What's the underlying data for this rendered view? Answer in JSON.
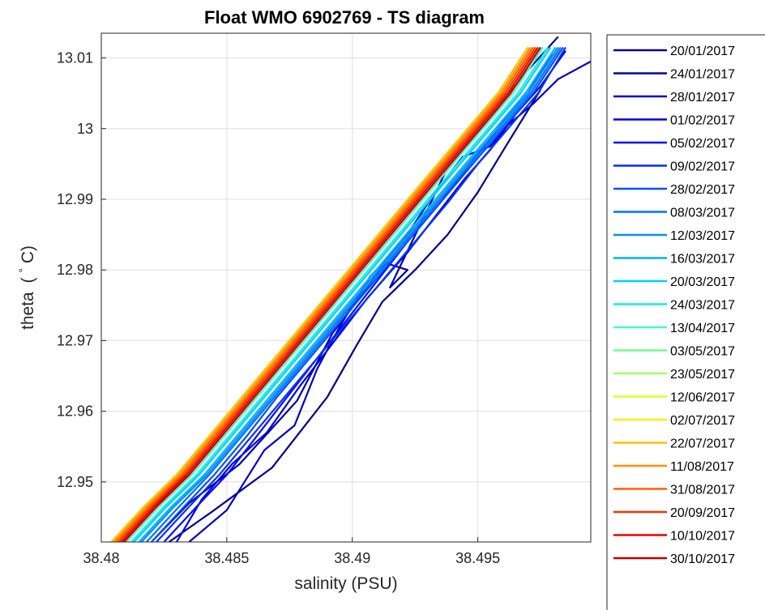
{
  "chart_data": {
    "type": "line",
    "title": "Float WMO 6902769 - TS diagram",
    "xlabel": "salinity (PSU)",
    "ylabel_main": "theta",
    "ylabel_unit": "(",
    "ylabel_deg": "°",
    "ylabel_tail": "C)",
    "xlim": [
      38.48,
      38.4995
    ],
    "ylim": [
      12.9415,
      13.0135
    ],
    "grid": true,
    "legend_position": "right-outside",
    "xticks": [
      {
        "value": 38.48,
        "label": "38.48"
      },
      {
        "value": 38.485,
        "label": "38.485"
      },
      {
        "value": 38.49,
        "label": "38.49"
      },
      {
        "value": 38.495,
        "label": "38.495"
      }
    ],
    "yticks": [
      {
        "value": 12.95,
        "label": "12.95"
      },
      {
        "value": 12.96,
        "label": "12.96"
      },
      {
        "value": 12.97,
        "label": "12.97"
      },
      {
        "value": 12.98,
        "label": "12.98"
      },
      {
        "value": 12.99,
        "label": "12.99"
      },
      {
        "value": 13.0,
        "label": "13"
      },
      {
        "value": 13.01,
        "label": "13.01"
      }
    ],
    "series": [
      {
        "name": "20/01/2017",
        "color": "#00008f",
        "x": [
          38.4827,
          38.4845,
          38.4868,
          38.489,
          38.4902,
          38.4912,
          38.4925,
          38.4938,
          38.495,
          38.4962,
          38.4975
        ],
        "y": [
          12.9415,
          12.946,
          12.952,
          12.962,
          12.9695,
          12.9755,
          12.98,
          12.985,
          12.991,
          12.998,
          13.0055
        ]
      },
      {
        "name": "24/01/2017",
        "color": "#0000a8",
        "x": [
          38.482,
          38.4835,
          38.4855,
          38.4878,
          38.4892,
          38.4905,
          38.4913,
          38.4922,
          38.4915,
          38.4938,
          38.4953,
          38.4968,
          38.4982
        ],
        "y": [
          12.9415,
          12.947,
          12.9525,
          12.9615,
          12.971,
          12.977,
          12.981,
          12.98,
          12.9775,
          12.9945,
          13.0005,
          13.0075,
          13.013
        ]
      },
      {
        "name": "28/01/2017",
        "color": "#0000c4",
        "x": [
          38.4835,
          38.485,
          38.4865,
          38.4877,
          38.4886,
          38.4895,
          38.4907,
          38.492,
          38.4933,
          38.4944,
          38.4955,
          38.4962,
          38.4972,
          38.4982,
          38.4995
        ],
        "y": [
          12.9415,
          12.946,
          12.9545,
          12.958,
          12.966,
          12.972,
          12.979,
          12.984,
          12.991,
          12.996,
          12.9975,
          13.0005,
          13.0035,
          13.007,
          13.0095
        ]
      },
      {
        "name": "01/02/2017",
        "color": "#0000e0",
        "x": [
          38.483,
          38.484,
          38.4852,
          38.4866,
          38.4879,
          38.4893,
          38.4906,
          38.4922,
          38.4934,
          38.4945,
          38.4955,
          38.4965,
          38.4975,
          38.4985
        ],
        "y": [
          12.9415,
          12.9475,
          12.9525,
          12.957,
          12.9635,
          12.97,
          12.976,
          12.9825,
          12.988,
          12.993,
          12.997,
          13.002,
          13.006,
          13.011
        ]
      },
      {
        "name": "05/02/2017",
        "color": "#0010ff",
        "x": [
          38.4825,
          38.4838,
          38.485,
          38.4862,
          38.4874,
          38.4886,
          38.4898,
          38.491,
          38.4922,
          38.4935,
          38.4947,
          38.4958,
          38.497,
          38.498
        ],
        "y": [
          12.9415,
          12.9465,
          12.951,
          12.9565,
          12.962,
          12.9675,
          12.973,
          12.9785,
          12.984,
          12.9895,
          12.995,
          13.0,
          13.0055,
          13.0105
        ]
      },
      {
        "name": "09/02/2017",
        "color": "#0030ff",
        "x": [
          38.4822,
          38.4835,
          38.4847,
          38.486,
          38.4873,
          38.4886,
          38.4899,
          38.4912,
          38.4925,
          38.4938,
          38.495,
          38.4962,
          38.4974,
          38.4985
        ],
        "y": [
          12.9415,
          12.9465,
          12.951,
          12.9565,
          12.962,
          12.9675,
          12.973,
          12.9785,
          12.984,
          12.9895,
          12.995,
          13.0,
          13.005,
          13.0115
        ]
      },
      {
        "name": "28/02/2017",
        "color": "#0050ff",
        "x": [
          38.482,
          38.4833,
          38.4845,
          38.4858,
          38.487,
          38.4883,
          38.4896,
          38.4909,
          38.4922,
          38.4935,
          38.4948,
          38.496,
          38.4972,
          38.4984
        ],
        "y": [
          12.9415,
          12.9465,
          12.951,
          12.9565,
          12.962,
          12.9675,
          12.973,
          12.9785,
          12.984,
          12.9895,
          12.995,
          13.0,
          13.005,
          13.0115
        ]
      },
      {
        "name": "08/03/2017",
        "color": "#0070ff",
        "x": [
          38.4818,
          38.4831,
          38.4843,
          38.4856,
          38.4869,
          38.4882,
          38.4895,
          38.4908,
          38.4921,
          38.4934,
          38.4947,
          38.4959,
          38.4971,
          38.4983
        ],
        "y": [
          12.9415,
          12.9465,
          12.951,
          12.9565,
          12.962,
          12.9675,
          12.973,
          12.9785,
          12.984,
          12.9895,
          12.995,
          13.0,
          13.005,
          13.0115
        ]
      },
      {
        "name": "12/03/2017",
        "color": "#0090ff",
        "x": [
          38.4816,
          38.4829,
          38.4842,
          38.4855,
          38.4868,
          38.4881,
          38.4894,
          38.4907,
          38.492,
          38.4933,
          38.4946,
          38.4958,
          38.497,
          38.4982
        ],
        "y": [
          12.9415,
          12.9465,
          12.951,
          12.9565,
          12.962,
          12.9675,
          12.973,
          12.9785,
          12.984,
          12.9895,
          12.995,
          13.0,
          13.005,
          13.0115
        ]
      },
      {
        "name": "16/03/2017",
        "color": "#00b0ff",
        "x": [
          38.4815,
          38.4828,
          38.4841,
          38.4854,
          38.4867,
          38.488,
          38.4893,
          38.4906,
          38.4919,
          38.4932,
          38.4945,
          38.4957,
          38.4969,
          38.4981
        ],
        "y": [
          12.9415,
          12.9465,
          12.951,
          12.9565,
          12.962,
          12.9675,
          12.973,
          12.9785,
          12.984,
          12.9895,
          12.995,
          13.0,
          13.005,
          13.0115
        ]
      },
      {
        "name": "20/03/2017",
        "color": "#00d0ff",
        "x": [
          38.4813,
          38.4826,
          38.4839,
          38.4852,
          38.4865,
          38.4878,
          38.4891,
          38.4904,
          38.4917,
          38.493,
          38.4943,
          38.4955,
          38.4967,
          38.4979
        ],
        "y": [
          12.9415,
          12.9465,
          12.951,
          12.9565,
          12.962,
          12.9675,
          12.973,
          12.9785,
          12.984,
          12.9895,
          12.995,
          13.0,
          13.005,
          13.0115
        ]
      },
      {
        "name": "24/03/2017",
        "color": "#10f0e0",
        "x": [
          38.4812,
          38.4825,
          38.4838,
          38.4851,
          38.4864,
          38.4877,
          38.489,
          38.4903,
          38.4916,
          38.4929,
          38.4942,
          38.4954,
          38.4966,
          38.4978
        ],
        "y": [
          12.9415,
          12.9465,
          12.951,
          12.9565,
          12.962,
          12.9675,
          12.973,
          12.9785,
          12.984,
          12.9895,
          12.995,
          13.0,
          13.005,
          13.0115
        ]
      },
      {
        "name": "13/04/2017",
        "color": "#40ffbf",
        "x": [
          38.481,
          38.4823,
          38.4836,
          38.4849,
          38.4862,
          38.4875,
          38.4888,
          38.4901,
          38.4914,
          38.4927,
          38.494,
          38.4952,
          38.4964,
          38.4976
        ],
        "y": [
          12.9415,
          12.9465,
          12.951,
          12.9565,
          12.962,
          12.9675,
          12.973,
          12.9785,
          12.984,
          12.9895,
          12.995,
          13.0,
          13.005,
          13.0115
        ]
      },
      {
        "name": "03/05/2017",
        "color": "#70ff90",
        "x": [
          38.4809,
          38.4822,
          38.4835,
          38.4848,
          38.4861,
          38.4874,
          38.4887,
          38.49,
          38.4913,
          38.4926,
          38.4939,
          38.4951,
          38.4963,
          38.4975
        ],
        "y": [
          12.9415,
          12.9465,
          12.951,
          12.9565,
          12.962,
          12.9675,
          12.973,
          12.9785,
          12.984,
          12.9895,
          12.995,
          13.0,
          13.005,
          13.0115
        ]
      },
      {
        "name": "23/05/2017",
        "color": "#a0ff60",
        "x": [
          38.4808,
          38.4821,
          38.4834,
          38.4847,
          38.486,
          38.4873,
          38.4886,
          38.4899,
          38.4912,
          38.4925,
          38.4938,
          38.495,
          38.4962,
          38.4974
        ],
        "y": [
          12.9415,
          12.9465,
          12.951,
          12.9565,
          12.962,
          12.9675,
          12.973,
          12.9785,
          12.984,
          12.9895,
          12.995,
          13.0,
          13.005,
          13.0115
        ]
      },
      {
        "name": "12/06/2017",
        "color": "#dfff20",
        "x": [
          38.4806,
          38.482,
          38.4833,
          38.4846,
          38.4859,
          38.4872,
          38.4885,
          38.4898,
          38.4911,
          38.4924,
          38.4937,
          38.4949,
          38.4961,
          38.4973
        ],
        "y": [
          12.9415,
          12.9465,
          12.951,
          12.9565,
          12.962,
          12.9675,
          12.973,
          12.9785,
          12.984,
          12.9895,
          12.995,
          13.0,
          13.005,
          13.0115
        ]
      },
      {
        "name": "02/07/2017",
        "color": "#ffef00",
        "x": [
          38.4805,
          38.4818,
          38.4831,
          38.4844,
          38.4857,
          38.487,
          38.4883,
          38.4896,
          38.4909,
          38.4922,
          38.4935,
          38.4947,
          38.4959,
          38.4971
        ],
        "y": [
          12.9415,
          12.9465,
          12.951,
          12.9565,
          12.962,
          12.9675,
          12.973,
          12.9785,
          12.984,
          12.9895,
          12.995,
          13.0,
          13.005,
          13.0115
        ]
      },
      {
        "name": "22/07/2017",
        "color": "#ffc000",
        "x": [
          38.4804,
          38.4817,
          38.483,
          38.4843,
          38.4856,
          38.4869,
          38.4882,
          38.4895,
          38.4908,
          38.4921,
          38.4934,
          38.4946,
          38.4958,
          38.497
        ],
        "y": [
          12.9415,
          12.9465,
          12.951,
          12.9565,
          12.962,
          12.9675,
          12.973,
          12.9785,
          12.984,
          12.9895,
          12.995,
          13.0,
          13.005,
          13.0115
        ]
      },
      {
        "name": "11/08/2017",
        "color": "#ff9000",
        "x": [
          38.4805,
          38.4818,
          38.4831,
          38.4844,
          38.4857,
          38.487,
          38.4883,
          38.4896,
          38.4909,
          38.4922,
          38.4935,
          38.4947,
          38.4959,
          38.4971
        ],
        "y": [
          12.9415,
          12.9465,
          12.951,
          12.9565,
          12.962,
          12.9675,
          12.973,
          12.9785,
          12.984,
          12.9895,
          12.995,
          13.0,
          13.005,
          13.0115
        ]
      },
      {
        "name": "31/08/2017",
        "color": "#ff6000",
        "x": [
          38.4806,
          38.4819,
          38.4832,
          38.4845,
          38.4858,
          38.4871,
          38.4884,
          38.4897,
          38.491,
          38.4923,
          38.4936,
          38.4948,
          38.496,
          38.4972
        ],
        "y": [
          12.9415,
          12.9465,
          12.951,
          12.9565,
          12.962,
          12.9675,
          12.973,
          12.9785,
          12.984,
          12.9895,
          12.995,
          13.0,
          13.005,
          13.0115
        ]
      },
      {
        "name": "20/09/2017",
        "color": "#ff3000",
        "x": [
          38.4807,
          38.482,
          38.4833,
          38.4846,
          38.4859,
          38.4872,
          38.4885,
          38.4898,
          38.4911,
          38.4924,
          38.4937,
          38.4949,
          38.4961,
          38.4973
        ],
        "y": [
          12.9415,
          12.9465,
          12.951,
          12.9565,
          12.962,
          12.9675,
          12.973,
          12.9785,
          12.984,
          12.9895,
          12.995,
          13.0,
          13.005,
          13.0115
        ]
      },
      {
        "name": "10/10/2017",
        "color": "#f00000",
        "x": [
          38.4808,
          38.4821,
          38.4834,
          38.4847,
          38.486,
          38.4873,
          38.4886,
          38.4899,
          38.4912,
          38.4925,
          38.4938,
          38.495,
          38.4962,
          38.4974
        ],
        "y": [
          12.9415,
          12.9465,
          12.951,
          12.9565,
          12.962,
          12.9675,
          12.973,
          12.9785,
          12.984,
          12.9895,
          12.995,
          13.0,
          13.005,
          13.0115
        ]
      },
      {
        "name": "30/10/2017",
        "color": "#c00000",
        "x": [
          38.4809,
          38.4822,
          38.4835,
          38.4848,
          38.4861,
          38.4874,
          38.4887,
          38.49,
          38.4913,
          38.4926,
          38.4939,
          38.4951,
          38.4963,
          38.4975
        ],
        "y": [
          12.9415,
          12.9465,
          12.951,
          12.9565,
          12.962,
          12.9675,
          12.973,
          12.9785,
          12.984,
          12.9895,
          12.995,
          13.0,
          13.005,
          13.0115
        ]
      }
    ]
  }
}
